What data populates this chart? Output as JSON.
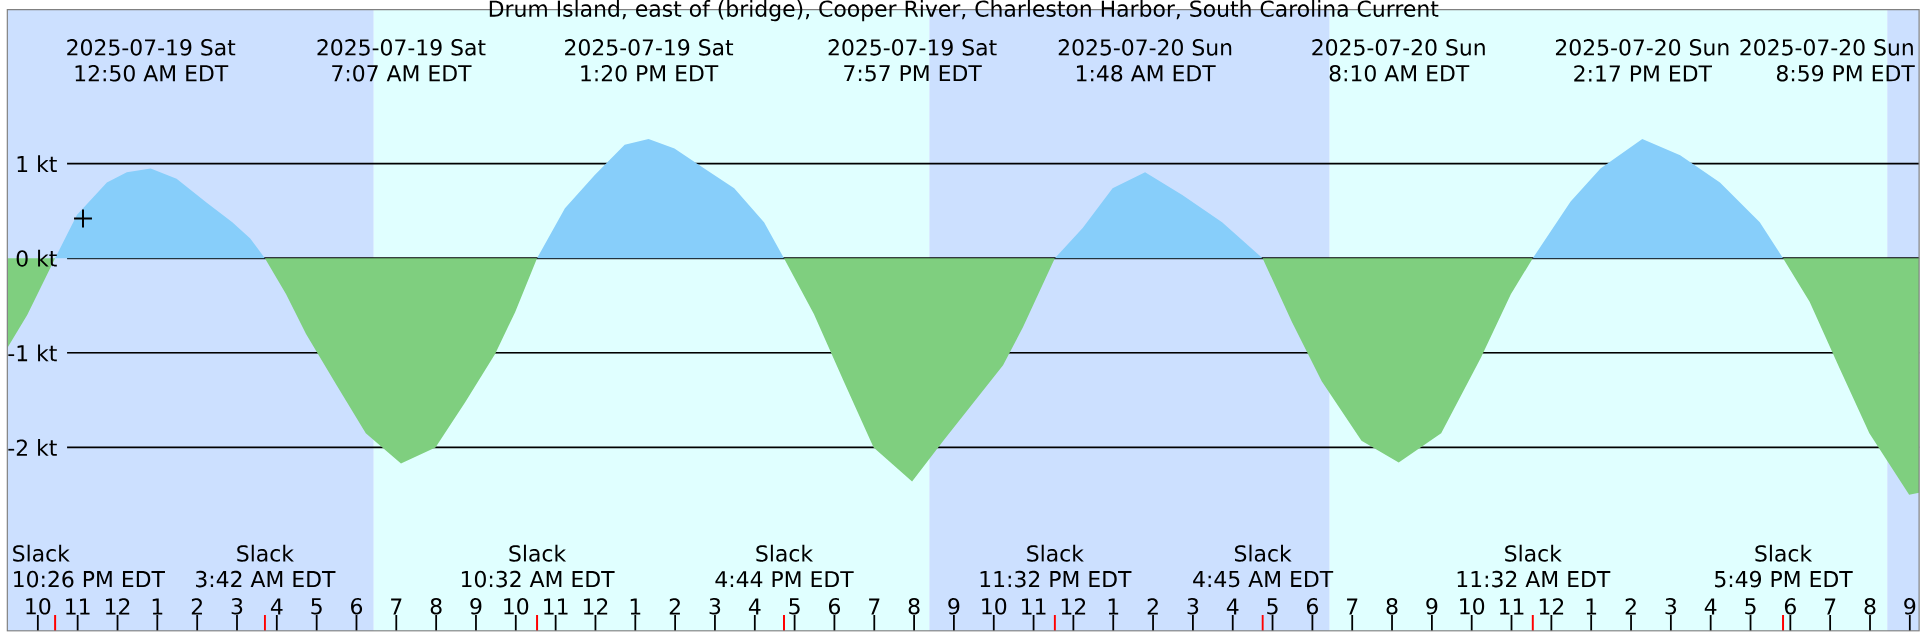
{
  "chart_data": {
    "type": "area",
    "title": "Drum Island, east of (bridge), Cooper River, Charleston Harbor, South Carolina Current",
    "xlim": [
      "2025-07-18T21:14",
      "2025-07-20T21:14"
    ],
    "ylim": [
      -3.94,
      2.63
    ],
    "xticks": [
      {
        "value": "2025-07-18T22:00",
        "label": "10"
      },
      {
        "value": "2025-07-18T23:00",
        "label": "11"
      },
      {
        "value": "2025-07-19T00:00",
        "label": "12"
      },
      {
        "value": "2025-07-19T01:00",
        "label": "1"
      },
      {
        "value": "2025-07-19T02:00",
        "label": "2"
      },
      {
        "value": "2025-07-19T03:00",
        "label": "3"
      },
      {
        "value": "2025-07-19T04:00",
        "label": "4"
      },
      {
        "value": "2025-07-19T05:00",
        "label": "5"
      },
      {
        "value": "2025-07-19T06:00",
        "label": "6"
      },
      {
        "value": "2025-07-19T07:00",
        "label": "7"
      },
      {
        "value": "2025-07-19T08:00",
        "label": "8"
      },
      {
        "value": "2025-07-19T09:00",
        "label": "9"
      },
      {
        "value": "2025-07-19T10:00",
        "label": "10"
      },
      {
        "value": "2025-07-19T11:00",
        "label": "11"
      },
      {
        "value": "2025-07-19T12:00",
        "label": "12"
      },
      {
        "value": "2025-07-19T13:00",
        "label": "1"
      },
      {
        "value": "2025-07-19T14:00",
        "label": "2"
      },
      {
        "value": "2025-07-19T15:00",
        "label": "3"
      },
      {
        "value": "2025-07-19T16:00",
        "label": "4"
      },
      {
        "value": "2025-07-19T17:00",
        "label": "5"
      },
      {
        "value": "2025-07-19T18:00",
        "label": "6"
      },
      {
        "value": "2025-07-19T19:00",
        "label": "7"
      },
      {
        "value": "2025-07-19T20:00",
        "label": "8"
      },
      {
        "value": "2025-07-19T21:00",
        "label": "9"
      },
      {
        "value": "2025-07-19T22:00",
        "label": "10"
      },
      {
        "value": "2025-07-19T23:00",
        "label": "11"
      },
      {
        "value": "2025-07-20T00:00",
        "label": "12"
      },
      {
        "value": "2025-07-20T01:00",
        "label": "1"
      },
      {
        "value": "2025-07-20T02:00",
        "label": "2"
      },
      {
        "value": "2025-07-20T03:00",
        "label": "3"
      },
      {
        "value": "2025-07-20T04:00",
        "label": "4"
      },
      {
        "value": "2025-07-20T05:00",
        "label": "5"
      },
      {
        "value": "2025-07-20T06:00",
        "label": "6"
      },
      {
        "value": "2025-07-20T07:00",
        "label": "7"
      },
      {
        "value": "2025-07-20T08:00",
        "label": "8"
      },
      {
        "value": "2025-07-20T09:00",
        "label": "9"
      },
      {
        "value": "2025-07-20T10:00",
        "label": "10"
      },
      {
        "value": "2025-07-20T11:00",
        "label": "11"
      },
      {
        "value": "2025-07-20T12:00",
        "label": "12"
      },
      {
        "value": "2025-07-20T13:00",
        "label": "1"
      },
      {
        "value": "2025-07-20T14:00",
        "label": "2"
      },
      {
        "value": "2025-07-20T15:00",
        "label": "3"
      },
      {
        "value": "2025-07-20T16:00",
        "label": "4"
      },
      {
        "value": "2025-07-20T17:00",
        "label": "5"
      },
      {
        "value": "2025-07-20T18:00",
        "label": "6"
      },
      {
        "value": "2025-07-20T19:00",
        "label": "7"
      },
      {
        "value": "2025-07-20T20:00",
        "label": "8"
      },
      {
        "value": "2025-07-20T21:00",
        "label": "9"
      }
    ],
    "yticks": [
      {
        "value": 1,
        "label": "1 kt"
      },
      {
        "value": 0,
        "label": "0 kt"
      },
      {
        "value": -1,
        "label": "-1 kt"
      },
      {
        "value": -2,
        "label": "-2 kt"
      }
    ],
    "grid": "y",
    "bands": [
      {
        "axis": "x",
        "from": "2025-07-18T21:14",
        "to": "2025-07-19T06:26",
        "color": "#cce0ff"
      },
      {
        "axis": "x",
        "from": "2025-07-19T06:26",
        "to": "2025-07-19T20:23",
        "color": "#e0ffff"
      },
      {
        "axis": "x",
        "from": "2025-07-19T20:23",
        "to": "2025-07-20T06:26",
        "color": "#cce0ff"
      },
      {
        "axis": "x",
        "from": "2025-07-20T06:26",
        "to": "2025-07-20T20:26",
        "color": "#e0ffff"
      },
      {
        "axis": "x",
        "from": "2025-07-20T20:26",
        "to": "2025-07-20T21:14",
        "color": "#cce0ff"
      }
    ],
    "series": [
      {
        "color": "#87cefa",
        "x": [
          "2025-07-18T22:26",
          "2025-07-18T22:59",
          "2025-07-18T23:44",
          "2025-07-19T00:14",
          "2025-07-19T00:50",
          "2025-07-19T01:29",
          "2025-07-19T02:14",
          "2025-07-19T02:53",
          "2025-07-19T03:20",
          "2025-07-19T03:42",
          null,
          "2025-07-19T10:32",
          "2025-07-19T11:14",
          "2025-07-19T11:59",
          "2025-07-19T12:44",
          "2025-07-19T13:20",
          "2025-07-19T13:59",
          "2025-07-19T14:44",
          "2025-07-19T15:29",
          "2025-07-19T16:14",
          "2025-07-19T16:44",
          null,
          "2025-07-19T23:32",
          "2025-07-20T00:14",
          "2025-07-20T00:59",
          "2025-07-20T01:48",
          "2025-07-20T02:44",
          "2025-07-20T03:44",
          "2025-07-20T04:45",
          null,
          "2025-07-20T11:32",
          "2025-07-20T12:29",
          "2025-07-20T13:14",
          "2025-07-20T14:17",
          "2025-07-20T15:14",
          "2025-07-20T16:14",
          "2025-07-20T17:14",
          "2025-07-20T17:49"
        ],
        "values": [
          0,
          0.46,
          0.8,
          0.91,
          0.95,
          0.84,
          0.59,
          0.38,
          0.21,
          0,
          null,
          0,
          0.53,
          0.88,
          1.2,
          1.26,
          1.16,
          0.95,
          0.74,
          0.38,
          0,
          null,
          0,
          0.32,
          0.74,
          0.91,
          0.67,
          0.38,
          0,
          null,
          0,
          0.6,
          0.95,
          1.26,
          1.09,
          0.8,
          0.38,
          0
        ]
      },
      {
        "color": "#7fcf7f",
        "x": [
          "2025-07-18T21:14",
          "2025-07-18T21:44",
          "2025-07-18T22:26",
          null,
          "2025-07-19T03:42",
          "2025-07-19T04:14",
          "2025-07-19T04:44",
          "2025-07-19T05:29",
          "2025-07-19T06:14",
          "2025-07-19T07:07",
          "2025-07-19T07:59",
          "2025-07-19T08:44",
          "2025-07-19T09:29",
          "2025-07-19T09:59",
          "2025-07-19T10:32",
          null,
          "2025-07-19T16:44",
          "2025-07-19T17:29",
          "2025-07-19T18:14",
          "2025-07-19T18:59",
          "2025-07-19T19:57",
          "2025-07-19T20:44",
          "2025-07-19T22:14",
          "2025-07-19T22:44",
          "2025-07-19T23:32",
          null,
          "2025-07-20T04:45",
          "2025-07-20T05:29",
          "2025-07-20T06:14",
          "2025-07-20T07:14",
          "2025-07-20T08:10",
          "2025-07-20T09:14",
          "2025-07-20T10:14",
          "2025-07-20T10:59",
          "2025-07-20T11:32",
          null,
          "2025-07-20T17:49",
          "2025-07-20T18:29",
          "2025-07-20T19:14",
          "2025-07-20T19:59",
          "2025-07-20T20:59",
          "2025-07-20T21:14"
        ],
        "values": [
          -0.95,
          -0.6,
          0,
          null,
          0,
          -0.38,
          -0.8,
          -1.33,
          -1.85,
          -2.17,
          -2.0,
          -1.52,
          -1.01,
          -0.57,
          0,
          null,
          0,
          -0.59,
          -1.3,
          -2.0,
          -2.36,
          -1.93,
          -1.13,
          -0.73,
          0,
          null,
          0,
          -0.67,
          -1.3,
          -1.93,
          -2.16,
          -1.85,
          -1.05,
          -0.38,
          0,
          null,
          0,
          -0.46,
          -1.16,
          -1.85,
          -2.5,
          -2.48
        ]
      },
      {
        "type": "scatter",
        "color": "#000000",
        "marker": "cross",
        "x": [
          "2025-07-18T23:08"
        ],
        "values": [
          0.42
        ]
      }
    ],
    "annotations": [
      "2025-07-19 Sat",
      "12:50 AM EDT",
      "2025-07-19 Sat",
      "7:07 AM EDT",
      "2025-07-19 Sat",
      "1:20 PM EDT",
      "2025-07-19 Sat",
      "7:57 PM EDT",
      "2025-07-20 Sun",
      "1:48 AM EDT",
      "2025-07-20 Sun",
      "8:10 AM EDT",
      "2025-07-20 Sun",
      "2:17 PM EDT",
      "2025-07-20 Sun",
      "8:59 PM EDT",
      "Slack",
      "10:26 PM EDT",
      "Slack",
      "3:42 AM EDT",
      "Slack",
      "10:32 AM EDT",
      "Slack",
      "4:44 PM EDT",
      "Slack",
      "11:32 PM EDT",
      "Slack",
      "4:45 AM EDT",
      "Slack",
      "11:32 AM EDT",
      "Slack",
      "5:49 PM EDT"
    ]
  }
}
